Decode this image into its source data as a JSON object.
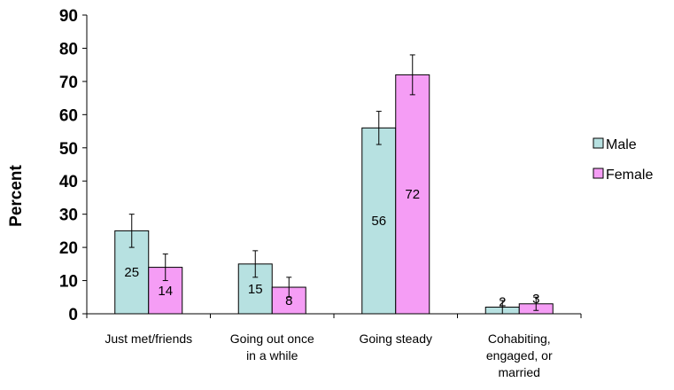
{
  "chart_data": {
    "type": "bar",
    "title": "",
    "xlabel": "",
    "ylabel": "Percent",
    "ylim": [
      0,
      90
    ],
    "yticks": [
      0,
      10,
      20,
      30,
      40,
      50,
      60,
      70,
      80,
      90
    ],
    "grid": false,
    "legend_position": "right",
    "categories": [
      [
        "Just met/friends"
      ],
      [
        "Going out once",
        "in a while"
      ],
      [
        "Going steady"
      ],
      [
        "Cohabiting,",
        "engaged, or",
        "married"
      ]
    ],
    "series": [
      {
        "name": "Male",
        "color": "#b7e1e1",
        "values": [
          25,
          15,
          56,
          2
        ],
        "error": [
          [
            20,
            30
          ],
          [
            11,
            19
          ],
          [
            51,
            61
          ],
          [
            0,
            4
          ]
        ]
      },
      {
        "name": "Female",
        "color": "#f59df5",
        "values": [
          14,
          8,
          72,
          3
        ],
        "error": [
          [
            10,
            18
          ],
          [
            5,
            11
          ],
          [
            66,
            78
          ],
          [
            1,
            5
          ]
        ]
      }
    ],
    "data_labels": true
  }
}
